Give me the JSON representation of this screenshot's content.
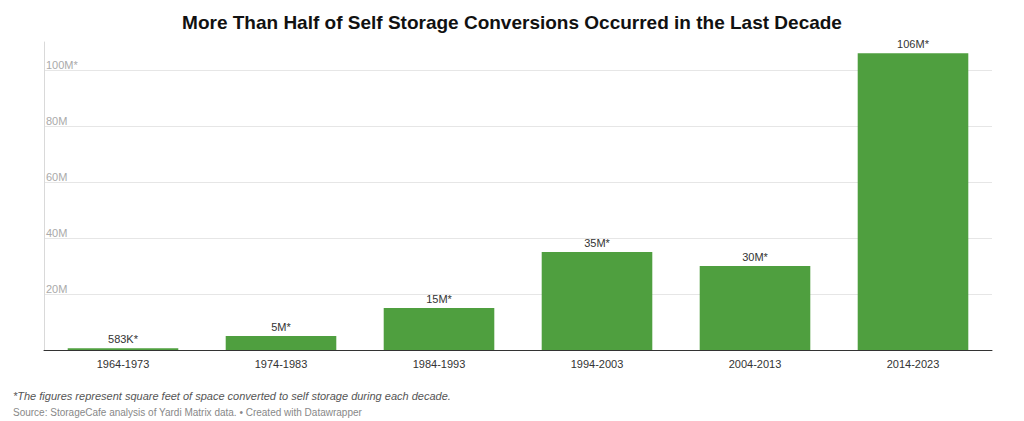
{
  "chart_data": {
    "type": "bar",
    "title": "More Than Half of Self Storage Conversions Occurred in the Last Decade",
    "categories": [
      "1964-1973",
      "1974-1983",
      "1984-1993",
      "1994-2003",
      "2004-2013",
      "2014-2023"
    ],
    "values": [
      0.583,
      5,
      15,
      35,
      30,
      106
    ],
    "value_labels": [
      "583K*",
      "5M*",
      "15M*",
      "35M*",
      "30M*",
      "106M*"
    ],
    "color": "#4f9f3f",
    "ylim": [
      0,
      110
    ],
    "yticks": [
      {
        "value": 20,
        "label": "20M"
      },
      {
        "value": 40,
        "label": "40M"
      },
      {
        "value": 60,
        "label": "60M"
      },
      {
        "value": 80,
        "label": "80M"
      },
      {
        "value": 100,
        "label": "100M*"
      }
    ],
    "grid": true,
    "data_labels": true,
    "footnote": "*The figures represent square feet of space converted to self storage during each decade.",
    "source": "Source: StorageCafe analysis of Yardi Matrix data. • Created with Datawrapper"
  }
}
